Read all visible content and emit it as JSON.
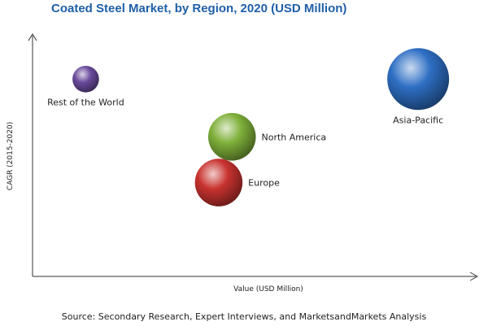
{
  "chart_data": {
    "type": "scatter",
    "title": "Coated Steel Market, by Region, 2020 (USD Million)",
    "xlabel": "Value (USD Million)",
    "ylabel": "CAGR (2015-2020)",
    "series": [
      {
        "name": "Asia-Pacific",
        "x": 0.87,
        "y": 0.82,
        "size": 1.0,
        "color": "#2e6fc4",
        "label_pos": "below"
      },
      {
        "name": "North America",
        "x": 0.45,
        "y": 0.58,
        "size": 0.77,
        "color": "#7fb03a",
        "label_pos": "right"
      },
      {
        "name": "Europe",
        "x": 0.42,
        "y": 0.39,
        "size": 0.77,
        "color": "#c8332f",
        "label_pos": "right"
      },
      {
        "name": "Rest of the World",
        "x": 0.12,
        "y": 0.82,
        "size": 0.43,
        "color": "#6a4a9c",
        "label_pos": "below"
      }
    ],
    "grid": false,
    "legend": "none"
  },
  "source": "Source: Secondary Research, Expert Interviews, and MarketsandMarkets Analysis"
}
